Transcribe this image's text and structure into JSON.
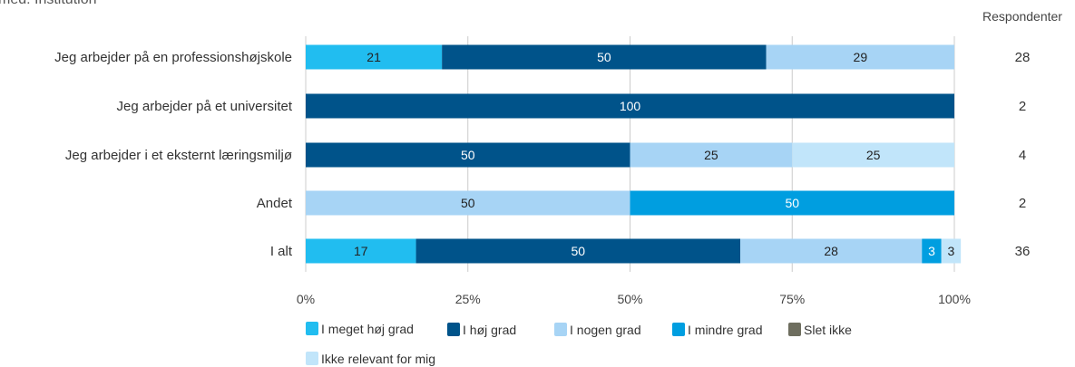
{
  "page_title": "med: Institution",
  "respondents_header": "Respondenter",
  "chart_data": {
    "type": "bar",
    "orientation": "horizontal",
    "stacked": true,
    "categories": [
      "Jeg arbejder på en professionshøjskole",
      "Jeg arbejder på et universitet",
      "Jeg arbejder i et eksternt læringsmiljø",
      "Andet",
      "I alt"
    ],
    "series": [
      {
        "name": "I meget høj grad",
        "color": "#21bdf0",
        "values": [
          21,
          0,
          0,
          0,
          17
        ]
      },
      {
        "name": "I høj grad",
        "color": "#00538a",
        "values": [
          50,
          100,
          50,
          0,
          50
        ]
      },
      {
        "name": "I nogen grad",
        "color": "#a7d4f5",
        "values": [
          29,
          0,
          25,
          50,
          28
        ]
      },
      {
        "name": "I mindre grad",
        "color": "#009ee0",
        "values": [
          0,
          0,
          0,
          50,
          3
        ]
      },
      {
        "name": "Slet ikke",
        "color": "#6e6e5f",
        "values": [
          0,
          0,
          0,
          0,
          0
        ]
      },
      {
        "name": "Ikke relevant for mig",
        "color": "#c1e5fa",
        "values": [
          0,
          0,
          25,
          0,
          3
        ]
      }
    ],
    "respondents": [
      28,
      2,
      4,
      2,
      36
    ],
    "xlim": [
      0,
      100
    ],
    "x_ticks": [
      "0%",
      "25%",
      "50%",
      "75%",
      "100%"
    ],
    "grid": true,
    "legend_position": "bottom"
  }
}
